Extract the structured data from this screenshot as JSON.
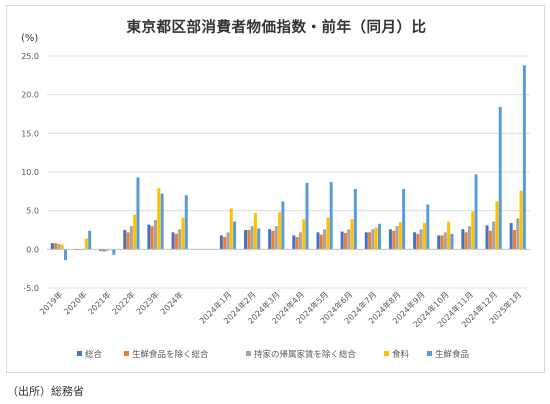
{
  "chart_data": {
    "type": "bar",
    "title": "東京都区部消費者物価指数・前年（同月）比",
    "ylabel": "(%)",
    "ylim": [
      -5,
      25
    ],
    "yticks": [
      "25.0",
      "20.0",
      "15.0",
      "10.0",
      "5.0",
      "0.0",
      "-5.0"
    ],
    "ytick_values": [
      25,
      20,
      15,
      10,
      5,
      0,
      -5
    ],
    "grid": true,
    "legend_position": "bottom",
    "categories": [
      "2019年",
      "2020年",
      "2021年",
      "2022年",
      "2023年",
      "2024年",
      "",
      "2024年1月",
      "2024年2月",
      "2024年3月",
      "2024年4月",
      "2024年5月",
      "2024年6月",
      "2024年7月",
      "2024年8月",
      "2024年9月",
      "2024年10月",
      "2024年11月",
      "2024年12月",
      "2025年1月"
    ],
    "series": [
      {
        "name": "総合",
        "color": "#4472c4",
        "values": [
          0.8,
          -0.1,
          -0.2,
          2.5,
          3.2,
          2.2,
          null,
          1.8,
          2.5,
          2.6,
          1.8,
          2.2,
          2.3,
          2.2,
          2.6,
          2.2,
          1.8,
          2.6,
          3.1,
          3.4
        ]
      },
      {
        "name": "生鮮食品を除く総合",
        "color": "#ed7d31",
        "values": [
          0.8,
          -0.1,
          -0.3,
          2.2,
          3.0,
          2.0,
          null,
          1.6,
          2.5,
          2.4,
          1.6,
          1.9,
          2.1,
          2.2,
          2.4,
          2.0,
          1.8,
          2.2,
          2.4,
          2.5
        ]
      },
      {
        "name": "持家の帰属家賃を除く総合",
        "color": "#a5a5a5",
        "values": [
          0.7,
          -0.1,
          -0.2,
          3.0,
          3.8,
          2.6,
          null,
          2.2,
          3.0,
          3.0,
          2.2,
          2.6,
          2.6,
          2.6,
          3.0,
          2.6,
          2.2,
          3.0,
          3.6,
          4.0
        ]
      },
      {
        "name": "食料",
        "color": "#ffc000",
        "values": [
          0.6,
          1.4,
          0.0,
          4.5,
          7.9,
          4.1,
          null,
          5.3,
          4.7,
          4.8,
          3.9,
          4.1,
          3.9,
          2.8,
          3.5,
          3.4,
          3.6,
          4.9,
          6.2,
          7.6
        ]
      },
      {
        "name": "生鮮食品",
        "color": "#5b9bd5",
        "values": [
          -1.4,
          2.4,
          -0.7,
          9.3,
          7.2,
          7.0,
          null,
          3.6,
          2.7,
          6.2,
          8.6,
          8.7,
          7.8,
          3.3,
          7.8,
          5.8,
          2.0,
          9.7,
          18.4,
          23.8
        ]
      }
    ]
  },
  "source_note": "（出所）総務省"
}
